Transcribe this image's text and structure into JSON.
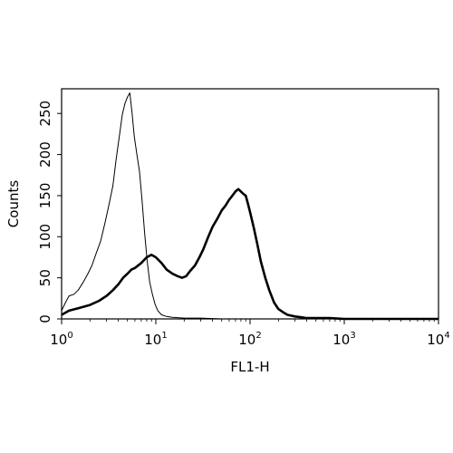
{
  "chart_data": {
    "type": "line",
    "xlabel": "FL1-H",
    "ylabel": "Counts",
    "x_scale": "log",
    "xlim": [
      1,
      10000
    ],
    "ylim": [
      0,
      280
    ],
    "x_ticks": [
      {
        "value": 1,
        "base": "10",
        "exp": "0"
      },
      {
        "value": 10,
        "base": "10",
        "exp": "1"
      },
      {
        "value": 100,
        "base": "10",
        "exp": "2"
      },
      {
        "value": 1000,
        "base": "10",
        "exp": "3"
      },
      {
        "value": 10000,
        "base": "10",
        "exp": "4"
      }
    ],
    "y_ticks": [
      "0",
      "50",
      "100",
      "150",
      "200",
      "250"
    ],
    "y_tick_values": [
      0,
      50,
      100,
      150,
      200,
      250
    ],
    "grid": false,
    "series": [
      {
        "style": "thin",
        "x": [
          1.0,
          1.1,
          1.2,
          1.35,
          1.5,
          1.7,
          1.9,
          2.1,
          2.3,
          2.6,
          2.9,
          3.2,
          3.5,
          3.8,
          4.1,
          4.4,
          4.7,
          5.0,
          5.3,
          5.6,
          5.9,
          6.3,
          6.7,
          7.1,
          7.6,
          8.1,
          8.6,
          9.2,
          9.8,
          10.5,
          11.5,
          13,
          15,
          20,
          30,
          50,
          100
        ],
        "values": [
          10,
          20,
          28,
          30,
          35,
          45,
          55,
          65,
          78,
          95,
          118,
          140,
          162,
          195,
          222,
          248,
          262,
          270,
          275,
          250,
          222,
          200,
          180,
          148,
          105,
          70,
          45,
          30,
          18,
          10,
          5,
          3,
          2,
          1,
          1,
          0,
          0
        ]
      },
      {
        "style": "thick",
        "x": [
          1.0,
          1.2,
          1.5,
          2.0,
          2.5,
          3.0,
          3.5,
          4.0,
          4.5,
          5.0,
          5.5,
          6.0,
          7.0,
          8.0,
          9.0,
          10.0,
          11.5,
          13,
          15,
          17,
          19,
          21,
          23,
          26,
          29,
          32,
          36,
          40,
          45,
          50,
          55,
          60,
          65,
          70,
          75,
          80,
          85,
          90,
          95,
          100,
          110,
          120,
          130,
          145,
          160,
          180,
          200,
          225,
          250,
          300,
          350,
          400,
          500,
          700,
          1000,
          1500,
          3000,
          5000,
          10000
        ],
        "values": [
          5,
          10,
          13,
          17,
          22,
          28,
          35,
          42,
          50,
          55,
          60,
          62,
          68,
          75,
          78,
          75,
          68,
          60,
          55,
          52,
          50,
          52,
          58,
          65,
          75,
          85,
          100,
          112,
          122,
          132,
          138,
          145,
          150,
          155,
          158,
          155,
          152,
          150,
          140,
          130,
          110,
          90,
          70,
          50,
          35,
          20,
          12,
          8,
          5,
          3,
          2,
          1,
          1,
          1,
          0,
          0,
          0,
          0,
          0
        ]
      }
    ]
  }
}
